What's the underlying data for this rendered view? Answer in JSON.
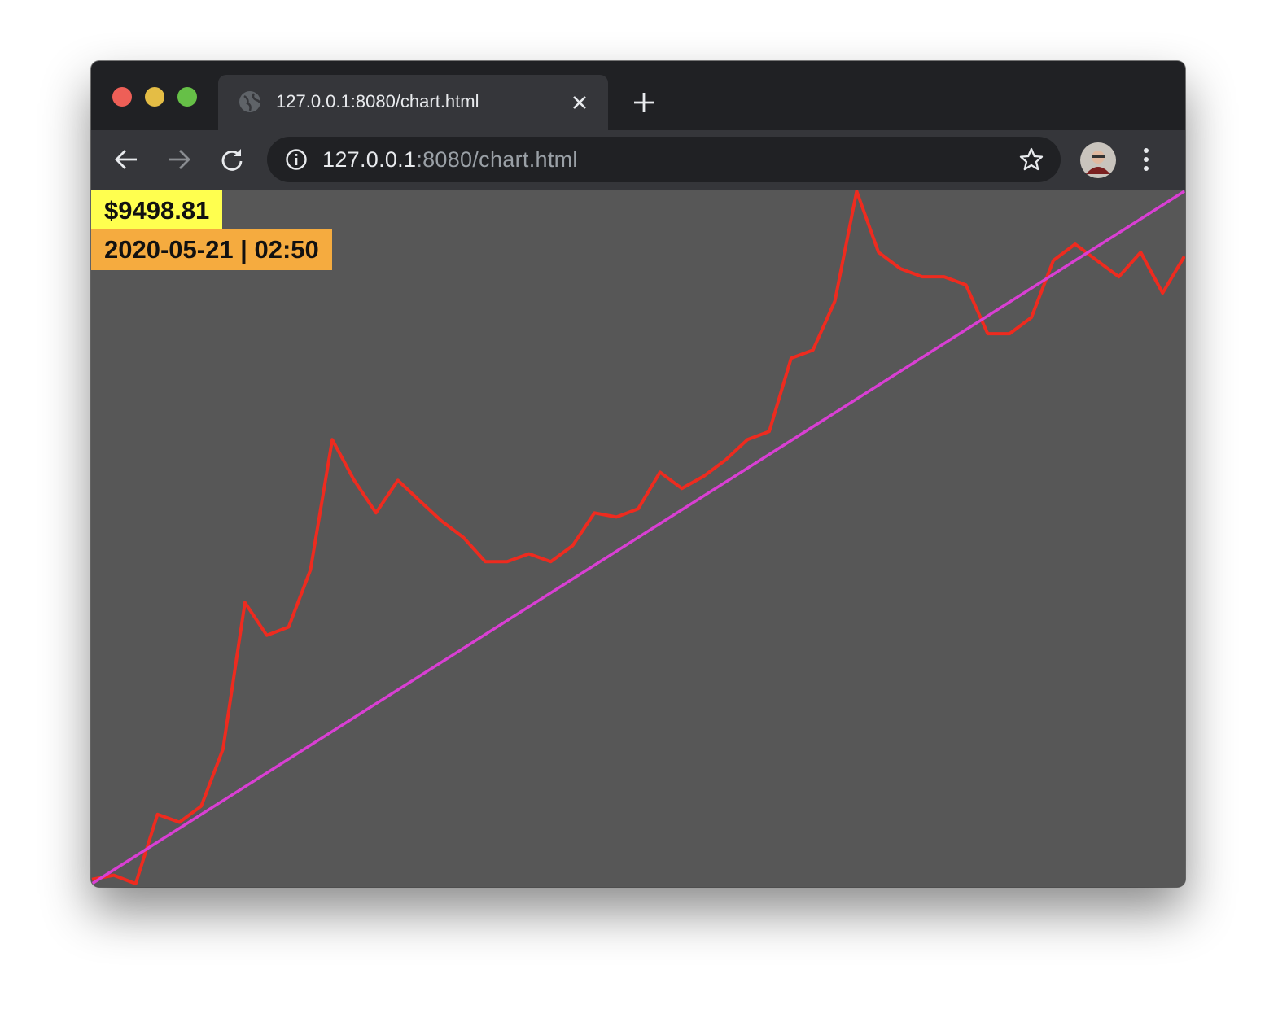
{
  "browser": {
    "tab_title": "127.0.0.1:8080/chart.html",
    "url_host": "127.0.0.1",
    "url_path": ":8080/chart.html"
  },
  "chart_data": {
    "type": "line",
    "price_label": "$9498.81",
    "time_label": "2020-05-21 | 02:50",
    "values": [
      8.4,
      8.8,
      8.0,
      17.5,
      16,
      19.2,
      36.6,
      191,
      132,
      145,
      276,
      1200,
      758,
      525,
      758,
      602,
      479,
      398,
      303,
      303,
      331,
      303,
      363,
      525,
      501,
      550,
      831,
      692,
      794,
      955,
      1200,
      1316,
      3010,
      3299,
      5725,
      19800,
      9940,
      8271,
      7543,
      7543,
      6881,
      3966,
      3966,
      4766,
      9066,
      10896,
      9066,
      7543,
      9940,
      6278,
      9498.81
    ],
    "color": "#ee2b1f",
    "trendline": {
      "values": [
        8,
        19800
      ],
      "color": "#d93fd3"
    },
    "ylim": [
      8,
      19800
    ],
    "log_scale": true,
    "grid": false
  }
}
